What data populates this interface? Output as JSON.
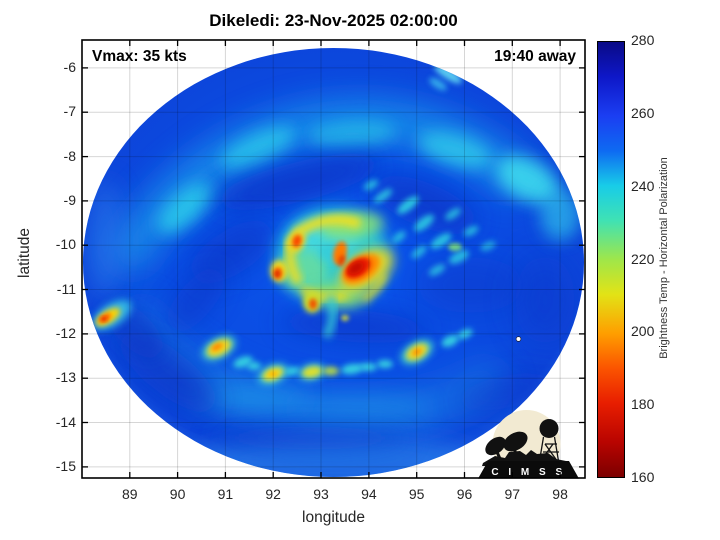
{
  "title": "Dikeledi: 23-Nov-2025 02:00:00",
  "overlay": {
    "vmax": "Vmax: 35 kts",
    "eta": "19:40 away"
  },
  "axes": {
    "xlabel": "longitude",
    "ylabel": "latitude",
    "x_ticks": [
      "89",
      "90",
      "91",
      "92",
      "93",
      "94",
      "95",
      "96",
      "97",
      "98"
    ],
    "y_ticks": [
      "-6",
      "-7",
      "-8",
      "-9",
      "-10",
      "-11",
      "-12",
      "-13",
      "-14",
      "-15"
    ]
  },
  "colorbar": {
    "label": "Brightness Temp - Horizontal Polarization",
    "ticks": [
      "280",
      "260",
      "240",
      "220",
      "200",
      "180",
      "160"
    ],
    "stops": [
      "#0a0a86 0%",
      "#0e17c8 8%",
      "#1b3ef2 17%",
      "#0e6af2 25%",
      "#18cce8 33%",
      "#3fe2b4 41%",
      "#9fe64a 50%",
      "#e2e316 58%",
      "#ff9e00 67%",
      "#fb5400 75%",
      "#e81e00 83%",
      "#b80400 92%",
      "#7c0000 100%"
    ]
  },
  "logo": {
    "text": "C I M S S"
  },
  "chart_data": {
    "type": "heatmap",
    "title": "Dikeledi: 23-Nov-2025 02:00:00",
    "storm_name": "Dikeledi",
    "valid_time": "23-Nov-2025 02:00:00",
    "vmax_kts": 35,
    "time_offset_label": "19:40 away",
    "xlabel": "longitude",
    "ylabel": "latitude",
    "xlim": [
      88.0,
      98.5
    ],
    "ylim": [
      -15.25,
      -5.4
    ],
    "x_ticks": [
      89,
      90,
      91,
      92,
      93,
      94,
      95,
      96,
      97,
      98
    ],
    "y_ticks": [
      -6,
      -7,
      -8,
      -9,
      -10,
      -11,
      -12,
      -13,
      -14,
      -15
    ],
    "grid": true,
    "colorbar": {
      "label": "Brightness Temp - Horizontal Polarization",
      "range_K": [
        160,
        280
      ],
      "ticks_K": [
        280,
        260,
        240,
        220,
        200,
        180,
        160
      ],
      "orientation": "vertical-right"
    },
    "swath": {
      "shape": "circular microwave satellite swath on white background",
      "center_lon": 93.25,
      "center_lat": -10.4,
      "radius_lon_deg": 5.2,
      "radius_lat_deg": 4.85,
      "background_brightness_temp_K": 255
    },
    "features": [
      {
        "desc": "deep convective core, coldest Tb ~170 K (red)",
        "lon": 93.7,
        "lat": -10.5
      },
      {
        "desc": "inner-core convective arc Tb ~200-215 K (orange/yellow ring)",
        "lon": 93.3,
        "lat": -10.2
      },
      {
        "desc": "hot tower west of core Tb ~185 K",
        "lon": 92.1,
        "lat": -10.6
      },
      {
        "desc": "hot tower northwest of core Tb ~195 K",
        "lon": 92.5,
        "lat": -9.9
      },
      {
        "desc": "hot tower south of core Tb ~195 K",
        "lon": 92.8,
        "lat": -11.3
      },
      {
        "desc": "strong cell at western swath edge Tb ~180 K",
        "lon": 88.5,
        "lat": -11.6
      },
      {
        "desc": "outer rainband cell Tb ~210 K",
        "lon": 90.9,
        "lat": -12.3
      },
      {
        "desc": "outer rainband cell Tb ~212 K",
        "lon": 92.0,
        "lat": -12.9
      },
      {
        "desc": "outer rainband cell Tb ~215 K",
        "lon": 93.0,
        "lat": -12.9
      },
      {
        "desc": "outer rainband cell Tb ~210 K",
        "lon": 95.0,
        "lat": -12.4
      },
      {
        "desc": "moderate cloud patch Tb ~235 K (cyan)",
        "lon": 97.2,
        "lat": -8.5
      },
      {
        "desc": "broad light cloud band Tb ~240 K arcing over north side",
        "lon": 93.0,
        "lat": -7.3
      },
      {
        "desc": "small missing-data pixel (white dot)",
        "lon": 97.1,
        "lat": -12.1
      }
    ]
  }
}
